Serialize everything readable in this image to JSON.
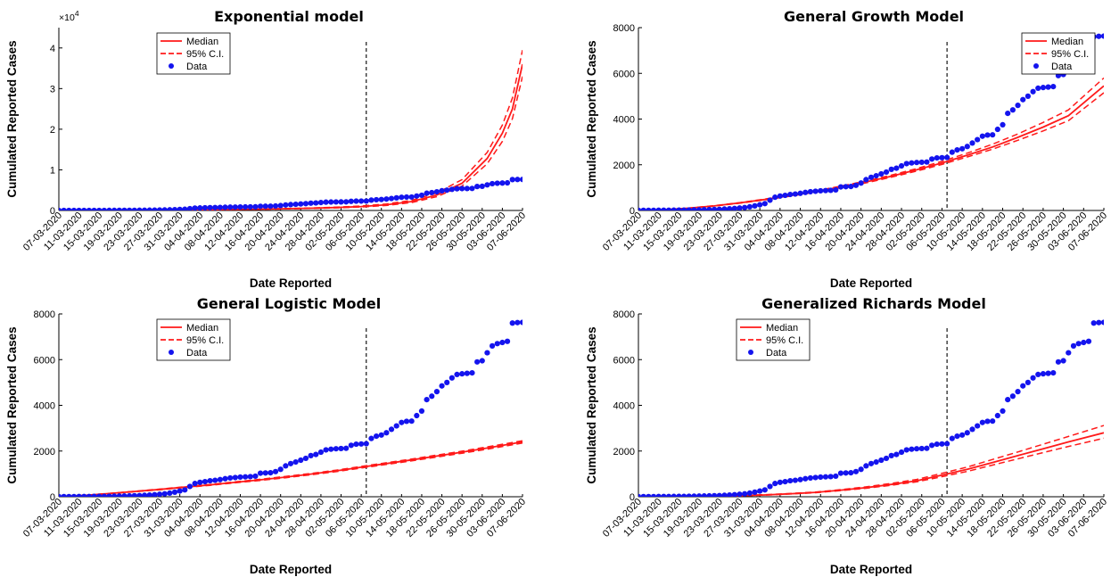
{
  "colors": {
    "model": "#ff1a1a",
    "data": "#1414ee",
    "axis": "#000000",
    "vline": "#000000"
  },
  "date_ticks": [
    "07-03-2020",
    "11-03-2020",
    "15-03-2020",
    "19-03-2020",
    "23-03-2020",
    "27-03-2020",
    "31-03-2020",
    "04-04-2020",
    "08-04-2020",
    "12-04-2020",
    "16-04-2020",
    "20-04-2020",
    "24-04-2020",
    "28-04-2020",
    "02-05-2020",
    "06-05-2020",
    "10-05-2020",
    "14-05-2020",
    "18-05-2020",
    "22-05-2020",
    "26-05-2020",
    "30-05-2020",
    "03-06-2020",
    "07-06-2020"
  ],
  "legend": {
    "median": "Median",
    "ci": "95% C.I.",
    "data": "Data"
  },
  "data_cases": {
    "days": [
      0,
      1,
      2,
      3,
      4,
      5,
      6,
      7,
      8,
      9,
      10,
      11,
      12,
      13,
      14,
      15,
      16,
      17,
      18,
      19,
      20,
      21,
      22,
      23,
      24,
      25,
      26,
      27,
      28,
      29,
      30,
      31,
      32,
      33,
      34,
      35,
      36,
      37,
      38,
      39,
      40,
      41,
      42,
      43,
      44,
      45,
      46,
      47,
      48,
      49,
      50,
      51,
      52,
      53,
      54,
      55,
      56,
      57,
      58,
      59,
      60,
      61,
      62,
      63,
      64,
      65,
      66,
      67,
      68,
      69,
      70,
      71,
      72,
      73,
      74,
      75,
      76,
      77,
      78,
      79,
      80,
      81,
      82,
      83,
      84,
      85,
      86,
      87,
      88,
      89,
      90,
      91,
      92
    ],
    "values": [
      5,
      5,
      7,
      8,
      10,
      10,
      12,
      14,
      16,
      18,
      20,
      24,
      28,
      33,
      38,
      45,
      52,
      62,
      75,
      90,
      110,
      130,
      160,
      200,
      250,
      300,
      450,
      580,
      630,
      660,
      700,
      720,
      750,
      790,
      820,
      840,
      860,
      870,
      880,
      900,
      1030,
      1040,
      1050,
      1100,
      1200,
      1350,
      1450,
      1520,
      1600,
      1680,
      1800,
      1850,
      1950,
      2050,
      2080,
      2100,
      2110,
      2120,
      2250,
      2300,
      2310,
      2320,
      2550,
      2650,
      2700,
      2800,
      2950,
      3100,
      3250,
      3300,
      3310,
      3550,
      3750,
      4250,
      4400,
      4600,
      4850,
      5000,
      5200,
      5350,
      5380,
      5400,
      5420,
      5900,
      5950,
      6300,
      6600,
      6700,
      6750,
      6800,
      7600,
      7620,
      7630
    ]
  },
  "chart_data": [
    {
      "type": "line",
      "title": "Exponential model",
      "xlabel": "Date Reported",
      "ylabel": "Cumulated Reported Cases",
      "x_unit": "days since 07-03-2020",
      "ylim": [
        0,
        45000
      ],
      "yticks": [
        0,
        10000,
        20000,
        30000,
        40000
      ],
      "ytick_labels": [
        "0",
        "1",
        "2",
        "3",
        "4"
      ],
      "y_exponent_label": "×10",
      "y_exponent_power": "4",
      "vline_at": "07-05-2020",
      "vline_day": 61,
      "legend_position": "top-left",
      "show_xlabel": true,
      "series": [
        {
          "name": "Median",
          "style": "solid",
          "x": [
            0,
            10,
            20,
            30,
            40,
            50,
            55,
            60,
            65,
            70,
            75,
            80,
            85,
            88,
            90,
            92
          ],
          "values": [
            40,
            60,
            110,
            190,
            320,
            540,
            720,
            960,
            1400,
            2200,
            3800,
            6700,
            12800,
            19000,
            25000,
            36000
          ]
        },
        {
          "name": "95% C.I.",
          "style": "dashed",
          "x": [
            0,
            10,
            20,
            30,
            40,
            50,
            55,
            60,
            65,
            70,
            75,
            80,
            85,
            88,
            90,
            92
          ],
          "values": [
            45,
            68,
            125,
            215,
            360,
            610,
            820,
            1090,
            1600,
            2500,
            4300,
            7600,
            14300,
            21000,
            27700,
            39500
          ]
        },
        {
          "name": "95% C.I.",
          "style": "dashed",
          "x": [
            0,
            10,
            20,
            30,
            40,
            50,
            55,
            60,
            65,
            70,
            75,
            80,
            85,
            88,
            90,
            92
          ],
          "values": [
            35,
            53,
            97,
            168,
            285,
            480,
            640,
            850,
            1240,
            1950,
            3400,
            6000,
            11500,
            17000,
            22600,
            33000
          ]
        },
        {
          "name": "Data",
          "style": "markers",
          "source": "data_cases"
        }
      ]
    },
    {
      "type": "line",
      "title": "General Growth Model",
      "xlabel": "Date Reported",
      "ylabel": "Cumulated Reported Cases",
      "x_unit": "days since 07-03-2020",
      "ylim": [
        0,
        8000
      ],
      "yticks": [
        0,
        2000,
        4000,
        6000,
        8000
      ],
      "ytick_labels": [
        "0",
        "2000",
        "4000",
        "6000",
        "8000"
      ],
      "vline_at": "07-05-2020",
      "vline_day": 61,
      "legend_position": "top-right",
      "show_xlabel": true,
      "series": [
        {
          "name": "Median",
          "style": "solid",
          "x": [
            0,
            5,
            10,
            15,
            20,
            25,
            30,
            35,
            40,
            45,
            50,
            55,
            60,
            65,
            70,
            75,
            80,
            85,
            92
          ],
          "values": [
            0,
            30,
            100,
            200,
            330,
            480,
            650,
            830,
            1030,
            1250,
            1500,
            1780,
            2080,
            2420,
            2780,
            3200,
            3650,
            4150,
            5450
          ]
        },
        {
          "name": "95% C.I.",
          "style": "dashed",
          "x": [
            0,
            5,
            10,
            15,
            20,
            25,
            30,
            35,
            40,
            45,
            50,
            55,
            60,
            65,
            70,
            75,
            80,
            85,
            92
          ],
          "values": [
            0,
            33,
            105,
            210,
            345,
            500,
            675,
            860,
            1065,
            1290,
            1545,
            1835,
            2150,
            2510,
            2900,
            3350,
            3850,
            4400,
            5800
          ]
        },
        {
          "name": "95% C.I.",
          "style": "dashed",
          "x": [
            0,
            5,
            10,
            15,
            20,
            25,
            30,
            35,
            40,
            45,
            50,
            55,
            60,
            65,
            70,
            75,
            80,
            85,
            92
          ],
          "values": [
            0,
            27,
            95,
            190,
            315,
            460,
            625,
            800,
            995,
            1210,
            1455,
            1725,
            2015,
            2340,
            2680,
            3070,
            3480,
            3930,
            5150
          ]
        },
        {
          "name": "Data",
          "style": "markers",
          "source": "data_cases"
        }
      ]
    },
    {
      "type": "line",
      "title": "General Logistic Model",
      "xlabel": "Date Reported",
      "ylabel": "Cumulated Reported Cases",
      "x_unit": "days since 07-03-2020",
      "ylim": [
        0,
        8000
      ],
      "yticks": [
        0,
        2000,
        4000,
        6000,
        8000
      ],
      "ytick_labels": [
        "0",
        "2000",
        "4000",
        "6000",
        "8000"
      ],
      "vline_at": "07-05-2020",
      "vline_day": 61,
      "legend_position": "top-left",
      "show_xlabel": true,
      "series": [
        {
          "name": "Median",
          "style": "solid",
          "x": [
            0,
            5,
            10,
            15,
            20,
            25,
            30,
            35,
            40,
            45,
            50,
            55,
            60,
            65,
            70,
            75,
            80,
            85,
            92
          ],
          "values": [
            0,
            60,
            140,
            230,
            320,
            420,
            520,
            630,
            740,
            860,
            990,
            1130,
            1290,
            1450,
            1610,
            1780,
            1950,
            2130,
            2400
          ]
        },
        {
          "name": "95% C.I.",
          "style": "dashed",
          "x": [
            0,
            5,
            10,
            15,
            20,
            25,
            30,
            35,
            40,
            45,
            50,
            55,
            60,
            65,
            70,
            75,
            80,
            85,
            92
          ],
          "values": [
            0,
            64,
            147,
            240,
            334,
            437,
            540,
            652,
            765,
            888,
            1020,
            1163,
            1325,
            1488,
            1650,
            1823,
            1995,
            2180,
            2450
          ]
        },
        {
          "name": "95% C.I.",
          "style": "dashed",
          "x": [
            0,
            5,
            10,
            15,
            20,
            25,
            30,
            35,
            40,
            45,
            50,
            55,
            60,
            65,
            70,
            75,
            80,
            85,
            92
          ],
          "values": [
            0,
            56,
            133,
            220,
            306,
            403,
            500,
            608,
            715,
            832,
            960,
            1097,
            1255,
            1412,
            1570,
            1737,
            1905,
            2080,
            2350
          ]
        },
        {
          "name": "Data",
          "style": "markers",
          "source": "data_cases"
        }
      ]
    },
    {
      "type": "line",
      "title": "Generalized Richards Model",
      "xlabel": "Date Reported",
      "ylabel": "Cumulated Reported Cases",
      "x_unit": "days since 07-03-2020",
      "ylim": [
        0,
        8000
      ],
      "yticks": [
        0,
        2000,
        4000,
        6000,
        8000
      ],
      "ytick_labels": [
        "0",
        "2000",
        "4000",
        "6000",
        "8000"
      ],
      "vline_at": "07-05-2020",
      "vline_day": 61,
      "legend_position": "top-left",
      "show_xlabel": true,
      "series": [
        {
          "name": "Median",
          "style": "solid",
          "x": [
            0,
            5,
            10,
            15,
            20,
            25,
            30,
            35,
            40,
            45,
            50,
            55,
            60,
            65,
            70,
            75,
            80,
            85,
            92
          ],
          "values": [
            0,
            5,
            12,
            25,
            45,
            80,
            130,
            190,
            290,
            400,
            540,
            700,
            950,
            1200,
            1500,
            1800,
            2100,
            2400,
            2800
          ]
        },
        {
          "name": "95% C.I.",
          "style": "dashed",
          "x": [
            0,
            5,
            10,
            15,
            20,
            25,
            30,
            35,
            40,
            45,
            50,
            55,
            60,
            65,
            70,
            75,
            80,
            85,
            92
          ],
          "values": [
            0,
            6,
            14,
            28,
            50,
            88,
            142,
            207,
            313,
            432,
            584,
            756,
            1026,
            1300,
            1630,
            1960,
            2300,
            2640,
            3120
          ]
        },
        {
          "name": "95% C.I.",
          "style": "dashed",
          "x": [
            0,
            5,
            10,
            15,
            20,
            25,
            30,
            35,
            40,
            45,
            50,
            55,
            60,
            65,
            70,
            75,
            80,
            85,
            92
          ],
          "values": [
            0,
            4,
            10,
            22,
            40,
            72,
            120,
            175,
            270,
            372,
            502,
            650,
            880,
            1110,
            1385,
            1660,
            1930,
            2200,
            2560
          ]
        },
        {
          "name": "Data",
          "style": "markers",
          "source": "data_cases"
        }
      ]
    }
  ]
}
